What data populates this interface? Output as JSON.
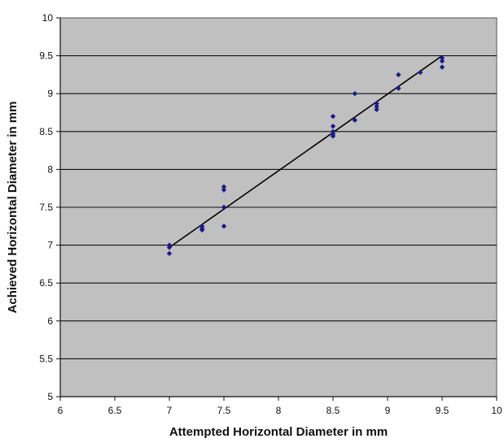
{
  "chart_data": {
    "type": "scatter",
    "title": "",
    "xlabel": "Attempted Horizontal Diameter in mm",
    "ylabel": "Achieved Horizontal Diameter in mm",
    "xlim": [
      6,
      10
    ],
    "ylim": [
      5,
      10
    ],
    "x_ticks": [
      "6",
      "6.5",
      "7",
      "7.5",
      "8",
      "8.5",
      "9",
      "9.5",
      "10"
    ],
    "y_ticks": [
      "5",
      "5.5",
      "6",
      "6.5",
      "7",
      "7.5",
      "8",
      "8.5",
      "9",
      "9.5",
      "10"
    ],
    "grid": "horizontal",
    "legend": "none",
    "plot_background": "#c0c0c0",
    "marker_color": "#1a1a8c",
    "line_color": "#000000",
    "series": [
      {
        "points": [
          {
            "x": 7.0,
            "y": 7.0
          },
          {
            "x": 7.0,
            "y": 6.97
          },
          {
            "x": 7.0,
            "y": 6.89
          },
          {
            "x": 7.3,
            "y": 7.25
          },
          {
            "x": 7.3,
            "y": 7.22
          },
          {
            "x": 7.3,
            "y": 7.2
          },
          {
            "x": 7.5,
            "y": 7.77
          },
          {
            "x": 7.5,
            "y": 7.73
          },
          {
            "x": 7.5,
            "y": 7.5
          },
          {
            "x": 7.5,
            "y": 7.25
          },
          {
            "x": 8.5,
            "y": 8.7
          },
          {
            "x": 8.5,
            "y": 8.57
          },
          {
            "x": 8.5,
            "y": 8.5
          },
          {
            "x": 8.5,
            "y": 8.47
          },
          {
            "x": 8.5,
            "y": 8.44
          },
          {
            "x": 8.7,
            "y": 9.0
          },
          {
            "x": 8.7,
            "y": 8.65
          },
          {
            "x": 8.9,
            "y": 8.87
          },
          {
            "x": 8.9,
            "y": 8.83
          },
          {
            "x": 8.9,
            "y": 8.79
          },
          {
            "x": 9.1,
            "y": 9.25
          },
          {
            "x": 9.1,
            "y": 9.07
          },
          {
            "x": 9.3,
            "y": 9.28
          },
          {
            "x": 9.5,
            "y": 9.47
          },
          {
            "x": 9.5,
            "y": 9.43
          },
          {
            "x": 9.5,
            "y": 9.35
          }
        ]
      }
    ],
    "trendline": {
      "x": [
        7.0,
        9.5
      ],
      "y": [
        6.97,
        9.5
      ]
    }
  }
}
